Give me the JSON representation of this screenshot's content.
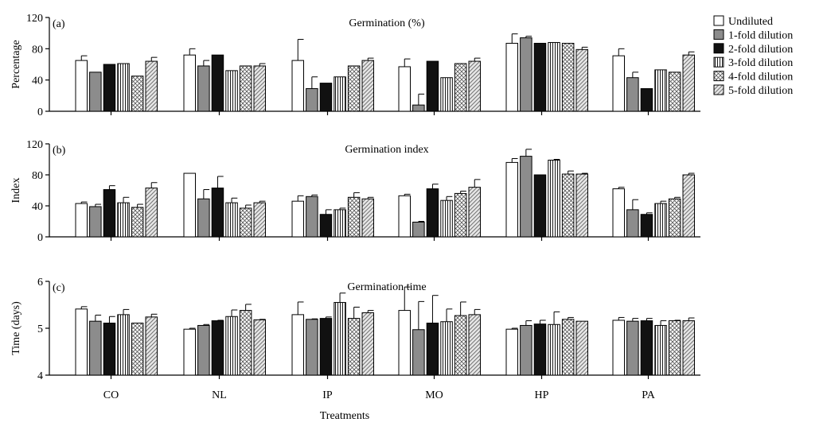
{
  "chart_data": [
    {
      "type": "bar",
      "panel_label": "(a)",
      "title": "Germination (%)",
      "ylabel": "Percentage",
      "ylim": [
        0,
        120
      ],
      "yticks": [
        0,
        40,
        80,
        120
      ],
      "categories": [
        "CO",
        "NL",
        "IP",
        "MO",
        "HP",
        "PA"
      ],
      "series": [
        {
          "name": "Undiluted",
          "values": [
            65,
            72,
            65,
            57,
            87,
            71
          ],
          "err": [
            6,
            8,
            27,
            10,
            12,
            9
          ]
        },
        {
          "name": "1-fold dilution",
          "values": [
            50,
            58,
            29,
            8,
            94,
            43
          ],
          "err": [
            0,
            7,
            15,
            14,
            2,
            7
          ]
        },
        {
          "name": "2-fold dilution",
          "values": [
            60,
            72,
            36,
            64,
            87,
            29
          ],
          "err": [
            0,
            0,
            0,
            0,
            0,
            0
          ]
        },
        {
          "name": "3-fold dilution",
          "values": [
            61,
            52,
            44,
            43,
            88,
            53
          ],
          "err": [
            0,
            0,
            0,
            0,
            0,
            0
          ]
        },
        {
          "name": "4-fold dilution",
          "values": [
            45,
            58,
            58,
            61,
            87,
            50
          ],
          "err": [
            0,
            0,
            0,
            0,
            0,
            0
          ]
        },
        {
          "name": "5-fold dilution",
          "values": [
            64,
            58,
            65,
            64,
            79,
            72
          ],
          "err": [
            5,
            3,
            3,
            4,
            3,
            4
          ]
        }
      ]
    },
    {
      "type": "bar",
      "panel_label": "(b)",
      "title": "Germination index",
      "ylabel": "Index",
      "ylim": [
        0,
        120
      ],
      "yticks": [
        0,
        40,
        80,
        120
      ],
      "categories": [
        "CO",
        "NL",
        "IP",
        "MO",
        "HP",
        "PA"
      ],
      "series": [
        {
          "name": "Undiluted",
          "values": [
            43,
            82,
            46,
            53,
            96,
            62
          ],
          "err": [
            2,
            0,
            7,
            2,
            5,
            2
          ]
        },
        {
          "name": "1-fold dilution",
          "values": [
            39,
            49,
            52,
            19,
            104,
            35
          ],
          "err": [
            3,
            12,
            2,
            1,
            9,
            13
          ]
        },
        {
          "name": "2-fold dilution",
          "values": [
            61,
            63,
            29,
            62,
            80,
            29
          ],
          "err": [
            5,
            15,
            6,
            6,
            0,
            2
          ]
        },
        {
          "name": "3-fold dilution",
          "values": [
            44,
            44,
            35,
            47,
            99,
            43
          ],
          "err": [
            7,
            6,
            2,
            5,
            1,
            3
          ]
        },
        {
          "name": "4-fold dilution",
          "values": [
            38,
            37,
            51,
            56,
            81,
            49
          ],
          "err": [
            4,
            4,
            6,
            3,
            4,
            2
          ]
        },
        {
          "name": "5-fold dilution",
          "values": [
            63,
            44,
            49,
            64,
            81,
            80
          ],
          "err": [
            7,
            2,
            2,
            10,
            1,
            2
          ]
        }
      ]
    },
    {
      "type": "bar",
      "panel_label": "(c)",
      "title": "Germination time",
      "ylabel": "Time (days)",
      "ylim": [
        4,
        6
      ],
      "yticks": [
        4,
        5,
        6
      ],
      "categories": [
        "CO",
        "NL",
        "IP",
        "MO",
        "HP",
        "PA"
      ],
      "series": [
        {
          "name": "Undiluted",
          "values": [
            5.41,
            4.98,
            5.29,
            5.38,
            4.98,
            5.17
          ],
          "err": [
            0.05,
            0.02,
            0.27,
            0.5,
            0.02,
            0.06
          ]
        },
        {
          "name": "1-fold dilution",
          "values": [
            5.15,
            5.06,
            5.19,
            4.97,
            5.06,
            5.15
          ],
          "err": [
            0.13,
            0.02,
            0.01,
            0.6,
            0.1,
            0.06
          ]
        },
        {
          "name": "2-fold dilution",
          "values": [
            5.11,
            5.16,
            5.21,
            5.11,
            5.09,
            5.16
          ],
          "err": [
            0.14,
            0.01,
            0.03,
            0.59,
            0.08,
            0.05
          ]
        },
        {
          "name": "3-fold dilution",
          "values": [
            5.29,
            5.25,
            5.55,
            5.14,
            5.08,
            5.06
          ],
          "err": [
            0.11,
            0.14,
            0.2,
            0.27,
            0.27,
            0.1
          ]
        },
        {
          "name": "4-fold dilution",
          "values": [
            5.11,
            5.38,
            5.21,
            5.27,
            5.19,
            5.16
          ],
          "err": [
            0,
            0.13,
            0.24,
            0.29,
            0.04,
            0.01
          ]
        },
        {
          "name": "5-fold dilution",
          "values": [
            5.24,
            5.18,
            5.33,
            5.29,
            5.15,
            5.16
          ],
          "err": [
            0.06,
            0.01,
            0.05,
            0.11,
            0,
            0.06
          ]
        }
      ]
    }
  ],
  "xlabel": "Treatments",
  "legend": {
    "placement": "top-right",
    "entries": [
      "Undiluted",
      "1-fold dilution",
      "2-fold dilution",
      "3-fold dilution",
      "4-fold dilution",
      "5-fold dilution"
    ]
  },
  "style": {
    "fills": [
      "#ffffff",
      "#8c8c8c",
      "#111111",
      "pattern-vertical",
      "pattern-cross",
      "pattern-diagonal"
    ],
    "stroke": "#000000"
  }
}
